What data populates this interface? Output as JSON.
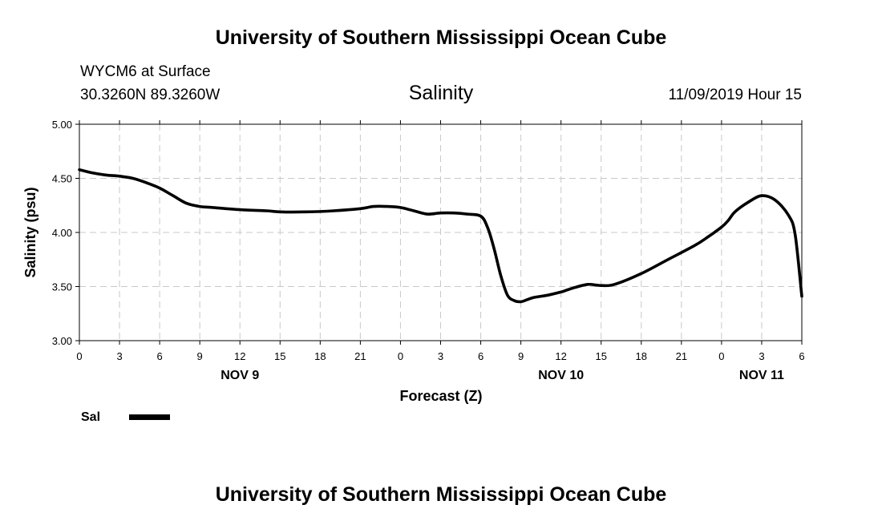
{
  "header": {
    "top_title": "University of Southern Mississippi Ocean Cube",
    "station": "WYCM6 at Surface",
    "coords": "30.3260N 89.3260W",
    "plot_title": "Salinity",
    "datetime": "11/09/2019 Hour 15"
  },
  "footer": {
    "bottom_title": "University of Southern Mississippi Ocean Cube"
  },
  "legend": {
    "label": "Sal"
  },
  "chart_data": {
    "type": "line",
    "xlabel": "Forecast (Z)",
    "ylabel": "Salinity (psu)",
    "ylim": [
      3.0,
      5.0
    ],
    "yticks": [
      "3.00",
      "3.50",
      "4.00",
      "4.50",
      "5.00"
    ],
    "xlim": [
      0,
      54
    ],
    "xticks": [
      {
        "x": 0,
        "label": "0"
      },
      {
        "x": 3,
        "label": "3"
      },
      {
        "x": 6,
        "label": "6"
      },
      {
        "x": 9,
        "label": "9"
      },
      {
        "x": 12,
        "label": "12"
      },
      {
        "x": 15,
        "label": "15"
      },
      {
        "x": 18,
        "label": "18"
      },
      {
        "x": 21,
        "label": "21"
      },
      {
        "x": 24,
        "label": "0"
      },
      {
        "x": 27,
        "label": "3"
      },
      {
        "x": 30,
        "label": "6"
      },
      {
        "x": 33,
        "label": "9"
      },
      {
        "x": 36,
        "label": "12"
      },
      {
        "x": 39,
        "label": "15"
      },
      {
        "x": 42,
        "label": "18"
      },
      {
        "x": 45,
        "label": "21"
      },
      {
        "x": 48,
        "label": "0"
      },
      {
        "x": 51,
        "label": "3"
      },
      {
        "x": 54,
        "label": "6"
      }
    ],
    "day_labels": [
      {
        "x": 12,
        "label": "NOV 9"
      },
      {
        "x": 36,
        "label": "NOV 10"
      },
      {
        "x": 51,
        "label": "NOV 11"
      }
    ],
    "grid": true,
    "series": [
      {
        "name": "Sal",
        "color": "#000000",
        "x": [
          0,
          1,
          2,
          3,
          4,
          5,
          6,
          7,
          8,
          9,
          10,
          12,
          14,
          15,
          17,
          19,
          21,
          22,
          23,
          24,
          25,
          26,
          27,
          28,
          29,
          30,
          30.5,
          31,
          31.5,
          32,
          32.5,
          33,
          33.5,
          34,
          35,
          36,
          36.5,
          37,
          38,
          39,
          40,
          42,
          44,
          46,
          47,
          48,
          48.5,
          49,
          50,
          51,
          52,
          53,
          53.5,
          54
        ],
        "values": [
          4.58,
          4.55,
          4.53,
          4.52,
          4.5,
          4.46,
          4.41,
          4.34,
          4.27,
          4.24,
          4.23,
          4.21,
          4.2,
          4.19,
          4.19,
          4.2,
          4.22,
          4.24,
          4.24,
          4.23,
          4.2,
          4.17,
          4.18,
          4.18,
          4.17,
          4.15,
          4.05,
          3.85,
          3.6,
          3.42,
          3.37,
          3.36,
          3.38,
          3.4,
          3.42,
          3.45,
          3.47,
          3.49,
          3.52,
          3.51,
          3.52,
          3.62,
          3.75,
          3.88,
          3.96,
          4.05,
          4.11,
          4.19,
          4.28,
          4.34,
          4.3,
          4.16,
          3.98,
          3.41
        ]
      }
    ]
  }
}
